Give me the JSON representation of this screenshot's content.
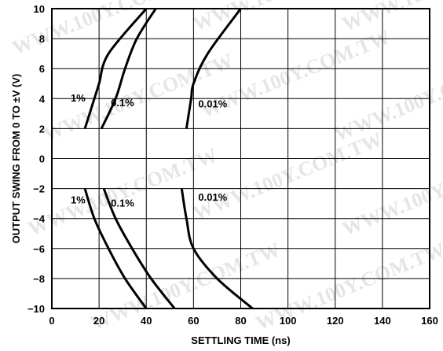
{
  "chart_data": {
    "type": "line",
    "xlabel": "SETTLING TIME (ns)",
    "ylabel": "OUTPUT SWING FROM 0 TO ±V (V)",
    "xlim": [
      0,
      160
    ],
    "ylim": [
      -10,
      10
    ],
    "x_ticks": [
      "0",
      "20",
      "40",
      "60",
      "80",
      "100",
      "120",
      "140",
      "160"
    ],
    "y_ticks": [
      "10",
      "8",
      "6",
      "4",
      "2",
      "0",
      "−2",
      "−4",
      "−6",
      "−8",
      "−10"
    ],
    "grid": true,
    "series": [
      {
        "name": "1%",
        "points": [
          [
            14,
            2
          ],
          [
            18,
            4
          ],
          [
            20,
            5
          ],
          [
            24,
            7
          ],
          [
            40,
            10
          ]
        ]
      },
      {
        "name": "0.1%",
        "points": [
          [
            21,
            2
          ],
          [
            27,
            4
          ],
          [
            31,
            6
          ],
          [
            36,
            8
          ],
          [
            44,
            10
          ]
        ]
      },
      {
        "name": "0.01%",
        "points": [
          [
            57,
            2
          ],
          [
            59,
            4
          ],
          [
            60,
            5
          ],
          [
            66,
            7
          ],
          [
            80,
            10
          ]
        ]
      },
      {
        "name": "1%",
        "points": [
          [
            14,
            -2
          ],
          [
            18,
            -4
          ],
          [
            24,
            -6
          ],
          [
            31,
            -8
          ],
          [
            40,
            -10
          ]
        ]
      },
      {
        "name": "0.1%",
        "points": [
          [
            22,
            -2
          ],
          [
            27,
            -4
          ],
          [
            34,
            -6
          ],
          [
            42,
            -8
          ],
          [
            52,
            -10
          ]
        ]
      },
      {
        "name": "0.01%",
        "points": [
          [
            55,
            -2
          ],
          [
            57,
            -4
          ],
          [
            60,
            -6
          ],
          [
            70,
            -8
          ],
          [
            85,
            -10
          ]
        ]
      }
    ],
    "annotations": [
      {
        "text": "1%",
        "x": 8,
        "y": 3.8
      },
      {
        "text": "0.1%",
        "x": 25,
        "y": 3.5
      },
      {
        "text": "0.01%",
        "x": 62,
        "y": 3.4
      },
      {
        "text": "1%",
        "x": 8,
        "y": -3.0
      },
      {
        "text": "0.1%",
        "x": 25,
        "y": -3.2
      },
      {
        "text": "0.01%",
        "x": 62,
        "y": -2.8
      }
    ]
  },
  "watermark": "WWW.100Y.COM.TW"
}
